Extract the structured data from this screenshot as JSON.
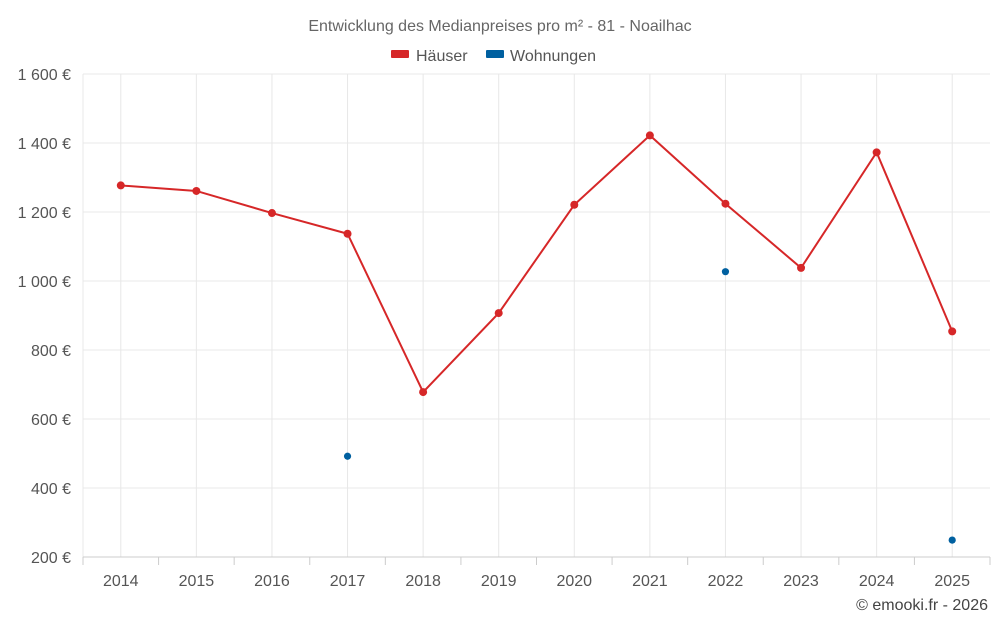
{
  "chart_data": {
    "type": "line",
    "title": "Entwicklung des Medianpreises pro m² - 81 - Noailhac",
    "xlabel": "",
    "ylabel": "",
    "categories": [
      "2014",
      "2015",
      "2016",
      "2017",
      "2018",
      "2019",
      "2020",
      "2021",
      "2022",
      "2023",
      "2024",
      "2025"
    ],
    "ylim": [
      200,
      1600
    ],
    "yticks": [
      200,
      400,
      600,
      800,
      1000,
      1200,
      1400,
      1600
    ],
    "ytick_labels": [
      "200 €",
      "400 €",
      "600 €",
      "800 €",
      "1 000 €",
      "1 200 €",
      "1 400 €",
      "1 600 €"
    ],
    "grid": true,
    "legend_position": "top-center",
    "series": [
      {
        "name": "Häuser",
        "color": "#d62728",
        "style": "line",
        "values": [
          1277,
          1261,
          1197,
          1137,
          678,
          907,
          1221,
          1422,
          1224,
          1038,
          1373,
          854
        ]
      },
      {
        "name": "Wohnungen",
        "color": "#0060a0",
        "style": "points",
        "values": [
          null,
          null,
          null,
          492,
          null,
          null,
          null,
          null,
          1027,
          null,
          null,
          249
        ]
      }
    ],
    "credit": "© emooki.fr - 2026"
  }
}
